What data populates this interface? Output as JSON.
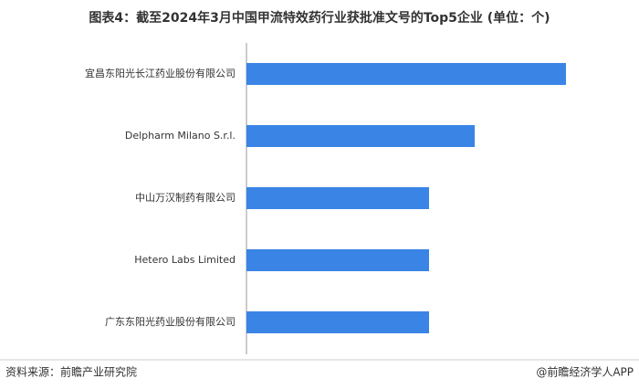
{
  "chart_data": {
    "type": "bar",
    "orientation": "horizontal",
    "title": "图表4：截至2024年3月中国甲流特效药行业获批准文号的Top5企业 (单位：个)",
    "categories": [
      "宜昌东阳光长江药业股份有限公司",
      "Delpharm Milano S.r.l.",
      "中山万汉制药有限公司",
      "Hetero Labs Limited",
      "广东东阳光药业股份有限公司"
    ],
    "values": [
      7,
      5,
      4,
      4,
      4
    ],
    "color": "#3a84e6",
    "xlim": [
      0,
      7
    ]
  },
  "footer": {
    "source": "资料来源：前瞻产业研究院",
    "credit": "@前瞻经济学人APP"
  }
}
